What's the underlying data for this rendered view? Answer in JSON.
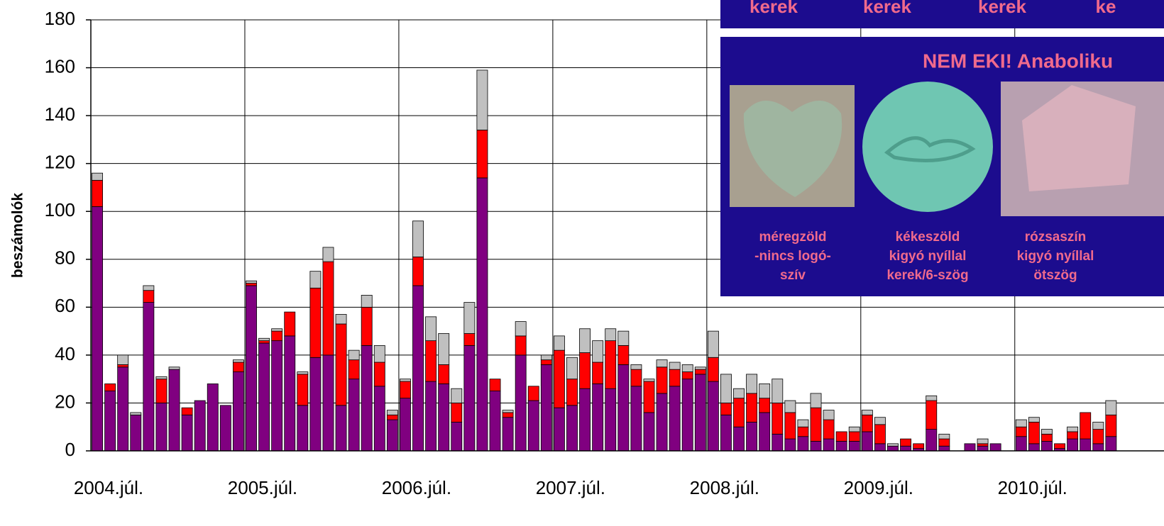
{
  "chart_data": {
    "type": "stacked-bar",
    "y_label": "beszámolók",
    "categories": [
      "2004.júl.",
      null,
      null,
      null,
      null,
      null,
      null,
      null,
      null,
      null,
      null,
      null,
      "2005.júl.",
      null,
      null,
      null,
      null,
      null,
      null,
      null,
      null,
      null,
      null,
      null,
      "2006.júl.",
      null,
      null,
      null,
      null,
      null,
      null,
      null,
      null,
      null,
      null,
      null,
      "2007.júl.",
      null,
      null,
      null,
      null,
      null,
      null,
      null,
      null,
      null,
      null,
      null,
      "2008.júl.",
      null,
      null,
      null,
      null,
      null,
      null,
      null,
      null,
      null,
      null,
      null,
      "2009.júl.",
      null,
      null,
      null,
      null,
      null,
      null,
      null,
      null,
      null,
      null,
      null,
      "2010.júl.",
      null,
      null,
      null,
      null,
      null,
      null,
      null
    ],
    "series": [
      {
        "color": "#800080",
        "values": [
          102,
          25,
          35,
          15,
          62,
          20,
          34,
          15,
          21,
          28,
          19,
          33,
          69,
          45,
          46,
          48,
          19,
          39,
          40,
          19,
          30,
          44,
          27,
          13,
          22,
          69,
          29,
          28,
          12,
          44,
          114,
          25,
          14,
          40,
          21,
          36,
          18,
          19,
          26,
          28,
          26,
          36,
          27,
          16,
          24,
          27,
          30,
          32,
          29,
          15,
          10,
          12,
          16,
          7,
          5,
          6,
          4,
          5,
          4,
          4,
          8,
          3,
          2,
          2,
          1,
          9,
          2,
          0,
          3,
          2,
          3,
          0,
          6,
          3,
          4,
          1,
          5,
          5,
          3,
          6
        ]
      },
      {
        "color": "#ff0000",
        "values": [
          11,
          3,
          1,
          0,
          5,
          10,
          0,
          3,
          0,
          0,
          0,
          4,
          1,
          1,
          4,
          10,
          13,
          29,
          39,
          34,
          8,
          16,
          10,
          2,
          7,
          12,
          17,
          8,
          8,
          5,
          20,
          5,
          2,
          8,
          6,
          2,
          24,
          11,
          15,
          9,
          20,
          8,
          7,
          13,
          11,
          7,
          3,
          2,
          10,
          5,
          12,
          12,
          6,
          13,
          11,
          4,
          14,
          8,
          4,
          4,
          7,
          8,
          0,
          3,
          2,
          12,
          3,
          0,
          0,
          1,
          0,
          0,
          4,
          9,
          3,
          2,
          3,
          11,
          6,
          9
        ]
      },
      {
        "color": "#c0c0c0",
        "values": [
          3,
          0,
          4,
          1,
          2,
          1,
          1,
          0,
          0,
          0,
          0,
          1,
          1,
          1,
          1,
          0,
          1,
          7,
          6,
          4,
          4,
          5,
          7,
          2,
          1,
          15,
          10,
          13,
          6,
          13,
          25,
          0,
          1,
          6,
          0,
          2,
          6,
          9,
          10,
          9,
          5,
          6,
          2,
          1,
          3,
          3,
          3,
          1,
          11,
          12,
          4,
          8,
          6,
          10,
          5,
          3,
          6,
          4,
          0,
          2,
          2,
          3,
          1,
          0,
          0,
          2,
          2,
          0,
          0,
          2,
          0,
          0,
          3,
          2,
          2,
          0,
          2,
          0,
          3,
          6
        ]
      }
    ],
    "ylim": [
      0,
      180
    ],
    "yticks": [
      0,
      20,
      40,
      60,
      80,
      100,
      120,
      140,
      160,
      180
    ],
    "grid": true
  },
  "inset": {
    "top_labels": [
      "kerek",
      "kerek",
      "kerek",
      "ke"
    ],
    "heading": "NEM EKI! Anaboliku",
    "captions": [
      [
        "méregzöld",
        "-nincs logó-",
        "szív"
      ],
      [
        "kékeszöld",
        "kigyó nyíllal",
        "kerek/6-szög"
      ],
      [
        "rózsaszín",
        "kigyó nyíllal",
        "ötszög"
      ]
    ]
  }
}
